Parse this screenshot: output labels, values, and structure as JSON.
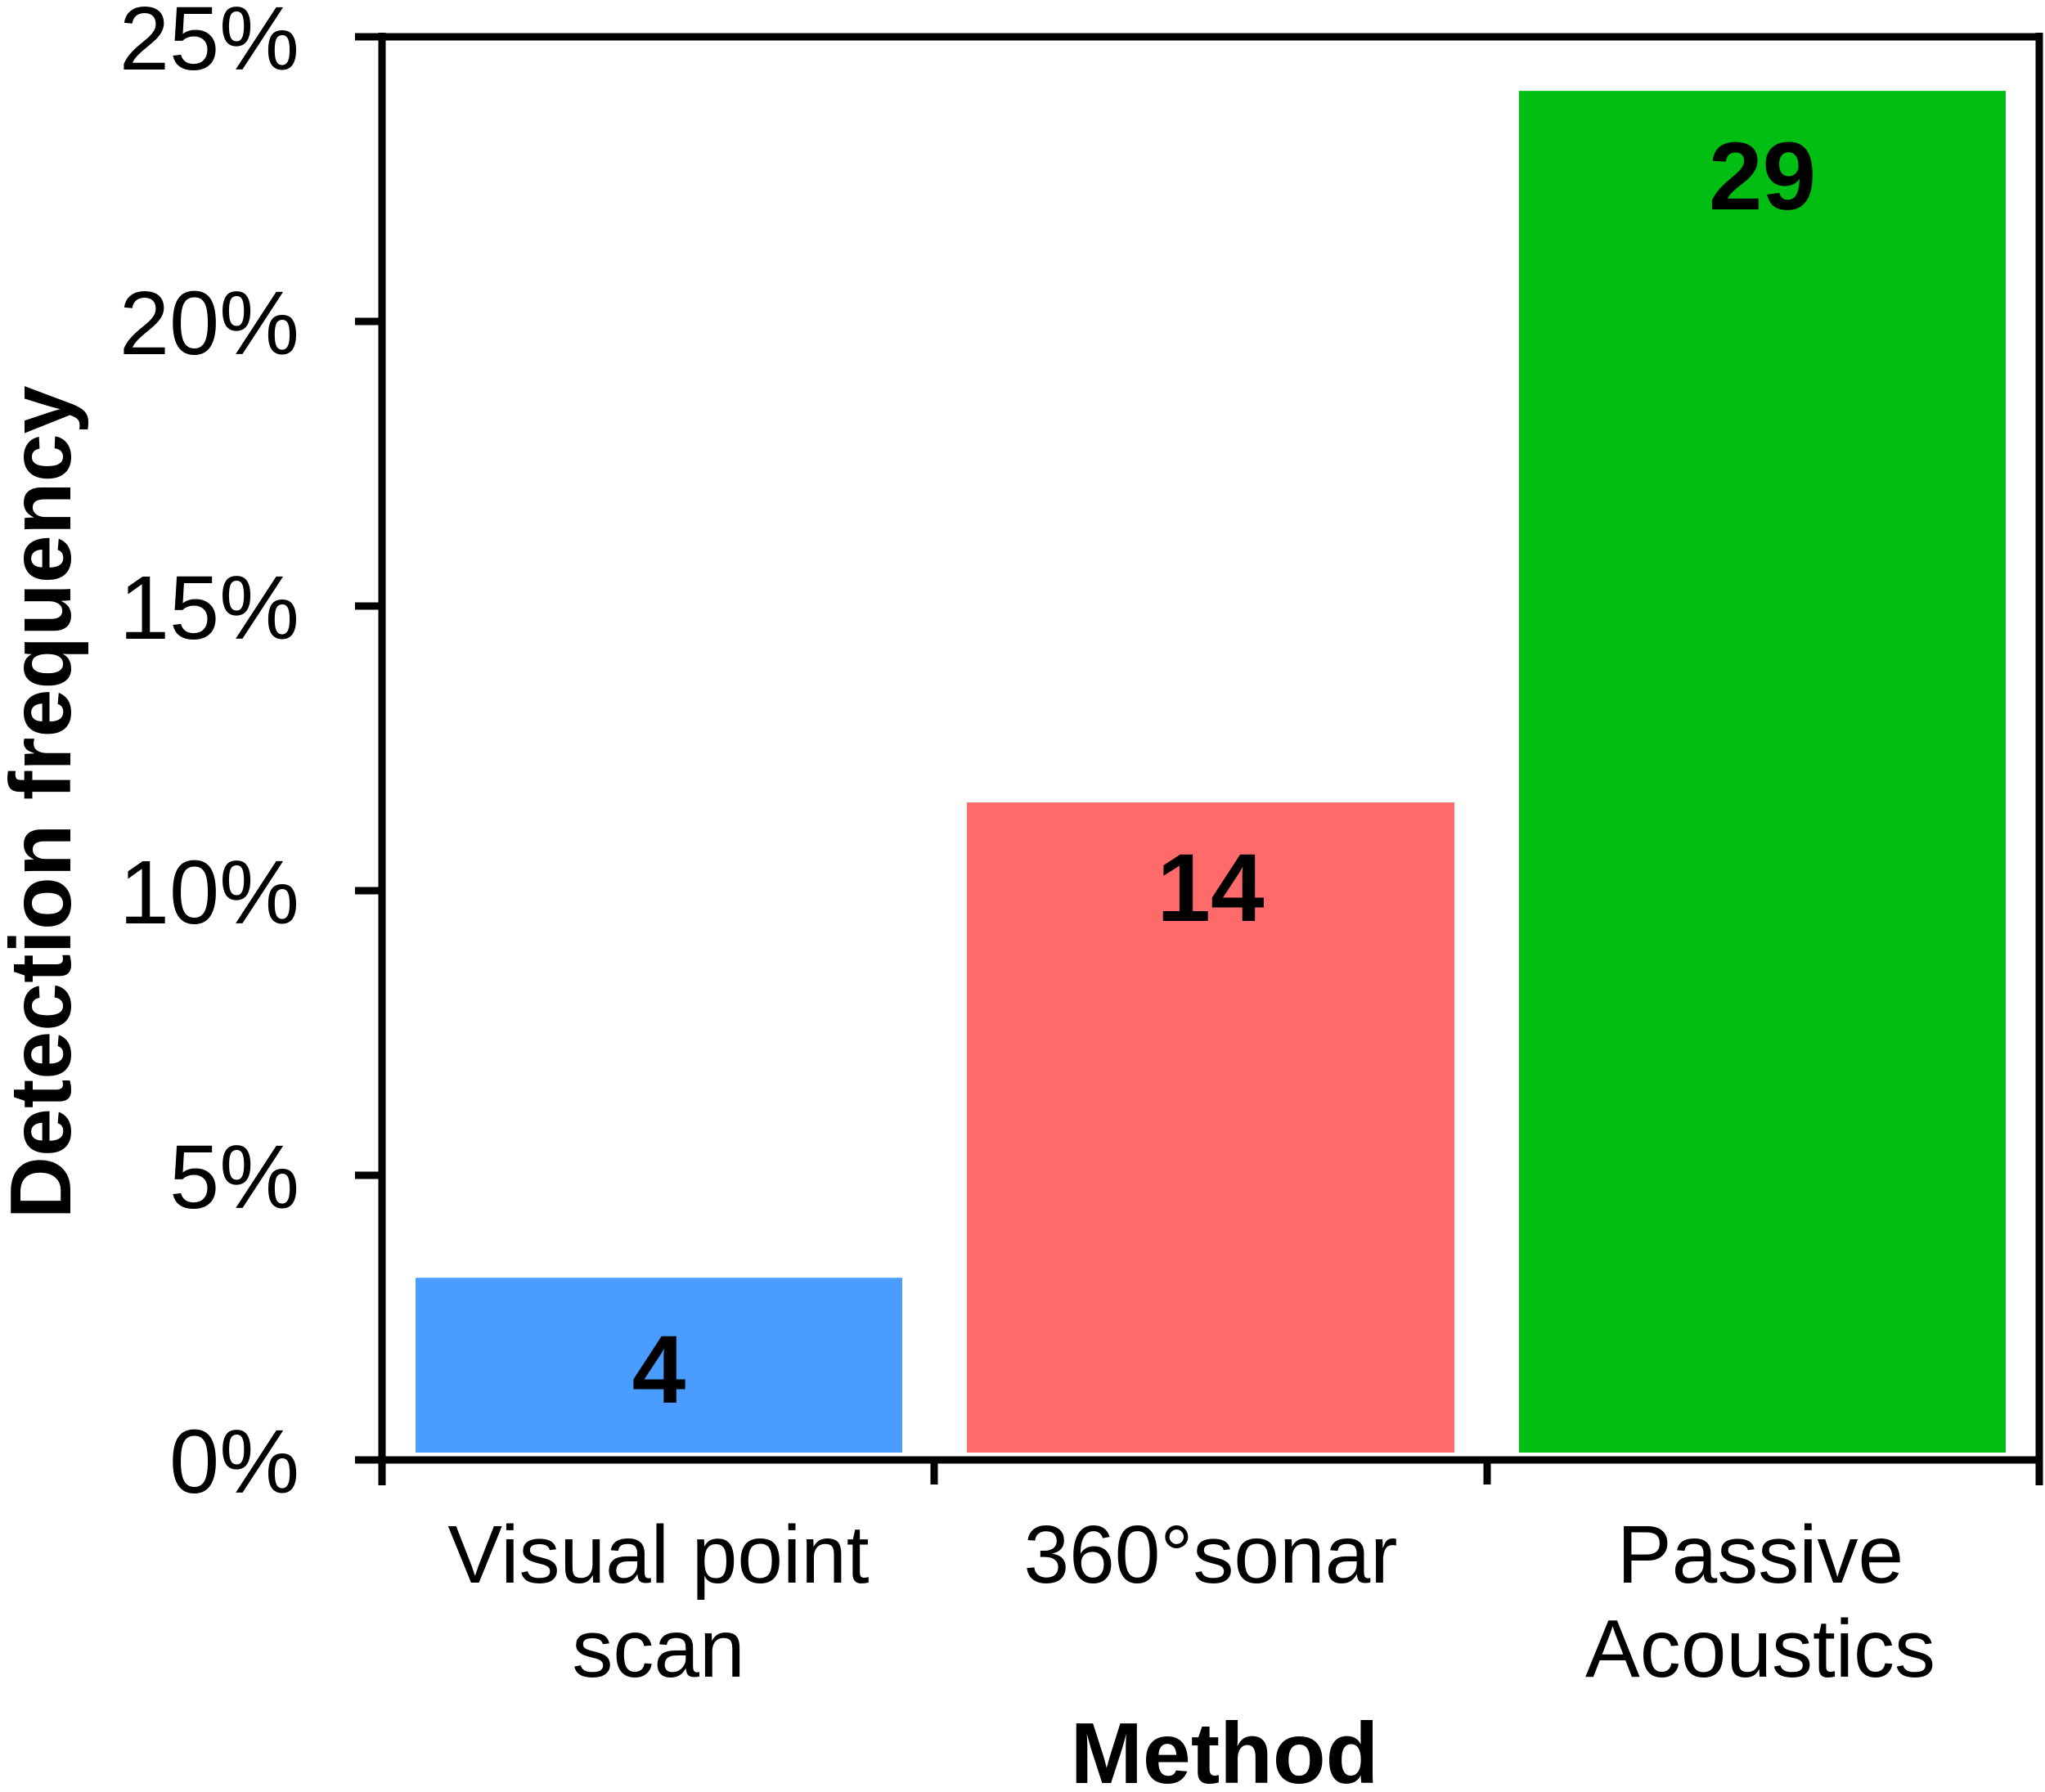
{
  "chart_data": {
    "type": "bar",
    "title": "",
    "xlabel": "Method",
    "ylabel": "Detection frequency",
    "categories": [
      "Visual point scan",
      "360°sonar",
      "Passive Acoustics"
    ],
    "category_lines": [
      [
        "Visual point",
        "scan"
      ],
      [
        "360°sonar"
      ],
      [
        "Passive",
        "Acoustics"
      ]
    ],
    "values": [
      3.2,
      11.55,
      24.05
    ],
    "value_unit": "%",
    "bar_labels": [
      "4",
      "14",
      "29"
    ],
    "colors": [
      "#4a9cff",
      "#ff6b6b",
      "#00be12"
    ],
    "ylim": [
      0,
      25
    ],
    "yticks": [
      0,
      5,
      10,
      15,
      20,
      25
    ],
    "ytick_labels": [
      "0%",
      "5%",
      "10%",
      "15%",
      "20%",
      "25%"
    ],
    "grid": false,
    "legend": null
  }
}
